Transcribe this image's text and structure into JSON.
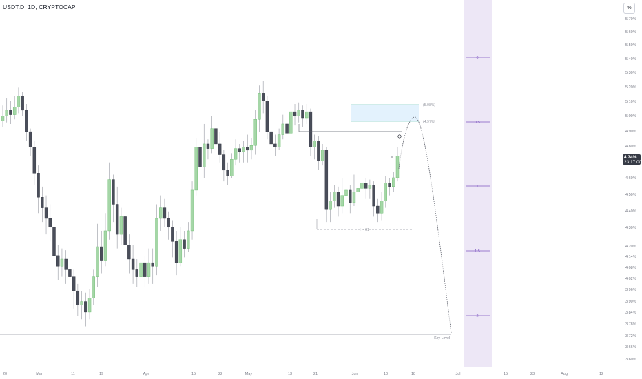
{
  "header": {
    "title": "USDT.D, 1D, CRYPTOCAP",
    "axis_button": "%"
  },
  "price_tag": {
    "value": "4.74%",
    "countdown": "23:17:00"
  },
  "colors": {
    "up": "#a5d6a7",
    "down": "#4a4e5a",
    "wick": "#9598a1",
    "fib_line": "#7e57c2",
    "fib_zone": "#ede7f6",
    "target_zone": "#e3f2fd",
    "target_border": "#80cbc4",
    "grid": "#f0f3fa"
  },
  "chart_data": {
    "type": "candlestick",
    "y_axis": {
      "min": 3.57,
      "max": 5.75,
      "tick_labels": [
        "5.70%",
        "5.60%",
        "5.50%",
        "5.40%",
        "5.30%",
        "5.20%",
        "5.10%",
        "5.00%",
        "4.90%",
        "4.80%",
        "4.60%",
        "4.50%",
        "4.40%",
        "4.30%",
        "4.20%",
        "4.14%",
        "4.08%",
        "4.02%",
        "3.96%",
        "3.90%",
        "3.84%",
        "3.78%",
        "3.72%",
        "3.66%",
        "3.60%"
      ]
    },
    "x_axis": {
      "tick_labels": [
        "20",
        "Mar",
        "11",
        "19",
        "Apr",
        "15",
        "22",
        "May",
        "13",
        "21",
        "Jun",
        "10",
        "18",
        "Jul",
        "15",
        "23",
        "Aug",
        "12"
      ]
    },
    "fib_levels": [
      {
        "label": "0"
      },
      {
        "label": "0.5"
      },
      {
        "label": "1"
      },
      {
        "label": "1.5"
      },
      {
        "label": "2"
      }
    ],
    "annotations": {
      "target_upper": "(5.08%)",
      "target_lower": "(4.97%)",
      "range_label": "H - 81",
      "key_level": "Key Level"
    },
    "candles": [
      [
        4.97,
        5.0,
        4.93,
        5.07
      ],
      [
        5.0,
        5.04,
        4.96,
        5.12
      ],
      [
        5.04,
        5.01,
        4.95,
        5.1
      ],
      [
        5.01,
        5.06,
        4.98,
        5.13
      ],
      [
        5.06,
        5.13,
        5.02,
        5.19
      ],
      [
        5.13,
        5.04,
        5.0,
        5.16
      ],
      [
        5.04,
        4.9,
        4.84,
        5.08
      ],
      [
        4.9,
        4.8,
        4.74,
        4.92
      ],
      [
        4.8,
        4.63,
        4.56,
        4.84
      ],
      [
        4.63,
        4.49,
        4.4,
        4.68
      ],
      [
        4.49,
        4.43,
        4.35,
        4.55
      ],
      [
        4.43,
        4.37,
        4.28,
        4.5
      ],
      [
        4.37,
        4.32,
        4.24,
        4.45
      ],
      [
        4.32,
        4.16,
        4.06,
        4.38
      ],
      [
        4.16,
        4.1,
        4.02,
        4.22
      ],
      [
        4.1,
        4.14,
        4.04,
        4.2
      ],
      [
        4.14,
        4.08,
        4.0,
        4.19
      ],
      [
        4.08,
        4.04,
        3.94,
        4.12
      ],
      [
        4.04,
        3.96,
        3.86,
        4.08
      ],
      [
        3.96,
        3.88,
        3.82,
        4.0
      ],
      [
        3.88,
        3.9,
        3.8,
        3.96
      ],
      [
        3.9,
        3.84,
        3.76,
        3.95
      ],
      [
        3.84,
        3.92,
        3.8,
        3.97
      ],
      [
        3.92,
        4.04,
        3.88,
        4.08
      ],
      [
        4.04,
        4.21,
        3.98,
        4.34
      ],
      [
        4.21,
        4.13,
        4.06,
        4.3
      ],
      [
        4.13,
        4.3,
        4.1,
        4.4
      ],
      [
        4.3,
        4.59,
        4.25,
        4.7
      ],
      [
        4.59,
        4.45,
        4.35,
        4.62
      ],
      [
        4.45,
        4.28,
        4.2,
        4.55
      ],
      [
        4.28,
        4.38,
        4.22,
        4.43
      ],
      [
        4.38,
        4.22,
        4.15,
        4.44
      ],
      [
        4.22,
        4.14,
        4.06,
        4.28
      ],
      [
        4.14,
        4.08,
        4.0,
        4.22
      ],
      [
        4.08,
        4.04,
        3.98,
        4.14
      ],
      [
        4.04,
        4.12,
        4.0,
        4.18
      ],
      [
        4.12,
        4.04,
        3.98,
        4.16
      ],
      [
        4.04,
        4.12,
        4.0,
        4.2
      ],
      [
        4.12,
        4.1,
        4.0,
        4.2
      ],
      [
        4.1,
        4.37,
        4.05,
        4.45
      ],
      [
        4.37,
        4.43,
        4.3,
        4.5
      ],
      [
        4.43,
        4.37,
        4.32,
        4.48
      ],
      [
        4.37,
        4.32,
        4.25,
        4.41
      ],
      [
        4.32,
        4.24,
        4.15,
        4.36
      ],
      [
        4.24,
        4.12,
        4.05,
        4.3
      ],
      [
        4.12,
        4.25,
        4.1,
        4.32
      ],
      [
        4.25,
        4.2,
        4.15,
        4.3
      ],
      [
        4.2,
        4.3,
        4.18,
        4.35
      ],
      [
        4.3,
        4.53,
        4.25,
        4.58
      ],
      [
        4.53,
        4.8,
        4.5,
        4.86
      ],
      [
        4.8,
        4.67,
        4.6,
        4.93
      ],
      [
        4.67,
        4.82,
        4.6,
        4.95
      ],
      [
        4.82,
        4.79,
        4.72,
        4.85
      ],
      [
        4.79,
        4.92,
        4.76,
        5.0
      ],
      [
        4.92,
        4.82,
        4.7,
        5.02
      ],
      [
        4.82,
        4.75,
        4.7,
        4.9
      ],
      [
        4.75,
        4.65,
        4.58,
        4.78
      ],
      [
        4.65,
        4.61,
        4.56,
        4.7
      ],
      [
        4.61,
        4.72,
        4.6,
        4.76
      ],
      [
        4.72,
        4.79,
        4.68,
        4.85
      ],
      [
        4.79,
        4.77,
        4.7,
        4.82
      ],
      [
        4.77,
        4.8,
        4.7,
        4.84
      ],
      [
        4.8,
        4.78,
        4.7,
        4.88
      ],
      [
        4.78,
        4.81,
        4.72,
        4.86
      ],
      [
        4.81,
        4.98,
        4.75,
        5.04
      ],
      [
        4.98,
        5.15,
        4.9,
        5.2
      ],
      [
        5.15,
        5.1,
        5.02,
        5.23
      ],
      [
        5.1,
        4.9,
        4.85,
        5.13
      ],
      [
        4.9,
        4.82,
        4.76,
        4.97
      ],
      [
        4.82,
        4.8,
        4.74,
        4.88
      ],
      [
        4.8,
        4.88,
        4.78,
        4.92
      ],
      [
        4.88,
        4.95,
        4.85,
        5.01
      ],
      [
        4.95,
        4.89,
        4.82,
        5.0
      ],
      [
        4.89,
        5.03,
        4.85,
        5.06
      ],
      [
        5.03,
        5.0,
        4.94,
        5.08
      ],
      [
        5.0,
        5.04,
        4.96,
        5.09
      ],
      [
        5.04,
        4.99,
        4.93,
        5.07
      ],
      [
        4.99,
        5.03,
        4.95,
        5.08
      ],
      [
        5.03,
        4.8,
        4.74,
        5.05
      ],
      [
        4.8,
        4.84,
        4.72,
        4.88
      ],
      [
        4.84,
        4.71,
        4.65,
        4.87
      ],
      [
        4.71,
        4.78,
        4.68,
        4.82
      ],
      [
        4.78,
        4.42,
        4.35,
        4.8
      ],
      [
        4.42,
        4.47,
        4.35,
        4.52
      ],
      [
        4.47,
        4.52,
        4.43,
        4.56
      ],
      [
        4.52,
        4.44,
        4.38,
        4.55
      ],
      [
        4.44,
        4.5,
        4.4,
        4.6
      ],
      [
        4.5,
        4.53,
        4.45,
        4.58
      ],
      [
        4.53,
        4.46,
        4.4,
        4.56
      ],
      [
        4.46,
        4.52,
        4.44,
        4.62
      ],
      [
        4.52,
        4.54,
        4.48,
        4.6
      ],
      [
        4.54,
        4.57,
        4.5,
        4.62
      ],
      [
        4.57,
        4.54,
        4.48,
        4.6
      ],
      [
        4.54,
        4.56,
        4.48,
        4.59
      ],
      [
        4.56,
        4.44,
        4.38,
        4.58
      ],
      [
        4.44,
        4.4,
        4.35,
        4.48
      ],
      [
        4.4,
        4.47,
        4.36,
        4.52
      ],
      [
        4.47,
        4.57,
        4.43,
        4.61
      ],
      [
        4.57,
        4.55,
        4.5,
        4.6
      ],
      [
        4.55,
        4.6,
        4.52,
        4.64
      ],
      [
        4.6,
        4.74,
        4.58,
        4.8
      ]
    ]
  }
}
